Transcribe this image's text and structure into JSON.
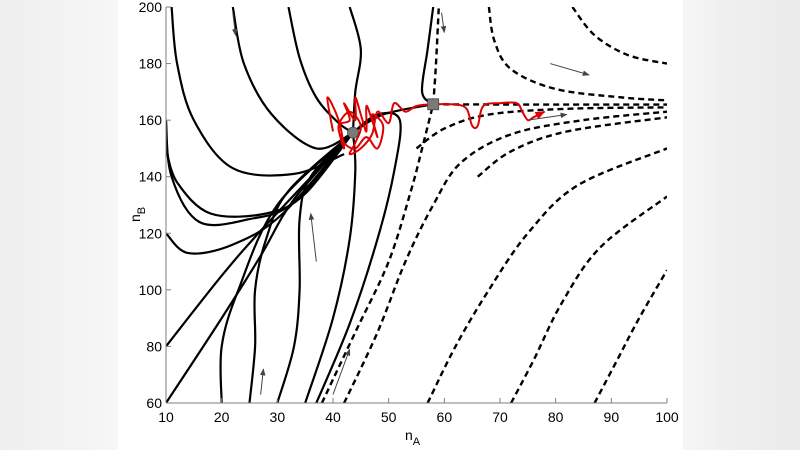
{
  "chart_data": {
    "type": "line",
    "title": "",
    "xlabel": "n_A",
    "ylabel": "n_B",
    "xlabel_main": "n",
    "xlabel_sub": "A",
    "ylabel_main": "n",
    "ylabel_sub": "B",
    "xlim": [
      10,
      100
    ],
    "ylim": [
      60,
      200
    ],
    "grid": false,
    "legend": "none",
    "x_ticks": [
      10,
      20,
      30,
      40,
      50,
      60,
      70,
      80,
      90,
      100
    ],
    "y_ticks": [
      60,
      80,
      100,
      120,
      140,
      160,
      180,
      200
    ],
    "x_tick_labels": [
      "10",
      "20",
      "30",
      "40",
      "50",
      "60",
      "70",
      "80",
      "90",
      "100"
    ],
    "y_tick_labels": [
      "60",
      "80",
      "100",
      "120",
      "140",
      "160",
      "180",
      "200"
    ],
    "colors": {
      "solid": "#000000",
      "dashed": "#000000",
      "trajectory": "#e00000",
      "markers": "#7a7a7a",
      "arrows": "#444444"
    },
    "markers": [
      {
        "shape": "circle",
        "name": "stable-fixed-point",
        "nA": 43.6,
        "nB": 155.6
      },
      {
        "shape": "square",
        "name": "saddle-point",
        "nA": 58.0,
        "nB": 165.6
      }
    ],
    "series": [
      {
        "name": "solid-1",
        "style": "solid",
        "points": [
          [
            11,
            200
          ],
          [
            12,
            180
          ],
          [
            15,
            160
          ],
          [
            22,
            143
          ],
          [
            33,
            141
          ],
          [
            42,
            148
          ]
        ]
      },
      {
        "name": "solid-2",
        "style": "solid",
        "points": [
          [
            22,
            200
          ],
          [
            24,
            180
          ],
          [
            29,
            162
          ],
          [
            37,
            150
          ],
          [
            43.6,
            155.6
          ]
        ]
      },
      {
        "name": "solid-3",
        "style": "solid",
        "points": [
          [
            32,
            200
          ],
          [
            34,
            182
          ],
          [
            37,
            168
          ],
          [
            41,
            159
          ],
          [
            43.6,
            155.6
          ]
        ]
      },
      {
        "name": "solid-4",
        "style": "solid",
        "points": [
          [
            10,
            150
          ],
          [
            12,
            138
          ],
          [
            18,
            127
          ],
          [
            28,
            127
          ],
          [
            35,
            134
          ],
          [
            43.6,
            155.6
          ]
        ]
      },
      {
        "name": "solid-5",
        "style": "solid",
        "points": [
          [
            10,
            160
          ],
          [
            11,
            140
          ],
          [
            16,
            124
          ],
          [
            25,
            125
          ],
          [
            33,
            131
          ],
          [
            43.6,
            155.6
          ]
        ]
      },
      {
        "name": "solid-6",
        "style": "solid",
        "points": [
          [
            10,
            120
          ],
          [
            14,
            113
          ],
          [
            22,
            116
          ],
          [
            31,
            127
          ],
          [
            43.6,
            155.6
          ]
        ]
      },
      {
        "name": "solid-7",
        "style": "solid",
        "points": [
          [
            10,
            80
          ],
          [
            20,
            105
          ],
          [
            28,
            123
          ],
          [
            43.6,
            155.6
          ]
        ]
      },
      {
        "name": "solid-8",
        "style": "solid",
        "points": [
          [
            10,
            60
          ],
          [
            20,
            90
          ],
          [
            27,
            112
          ],
          [
            33,
            132
          ],
          [
            43.6,
            155.6
          ]
        ]
      },
      {
        "name": "solid-9",
        "style": "solid",
        "points": [
          [
            20,
            60
          ],
          [
            20,
            80
          ],
          [
            23,
            100
          ],
          [
            30,
            130
          ],
          [
            43.6,
            155.6
          ]
        ]
      },
      {
        "name": "solid-10",
        "style": "solid",
        "points": [
          [
            25,
            60
          ],
          [
            26,
            80
          ],
          [
            26,
            100
          ],
          [
            28,
            118
          ],
          [
            32,
            135
          ],
          [
            43.6,
            155.6
          ]
        ]
      },
      {
        "name": "solid-11",
        "style": "solid",
        "points": [
          [
            30,
            60
          ],
          [
            33,
            80
          ],
          [
            34,
            100
          ],
          [
            34,
            125
          ],
          [
            36,
            140
          ],
          [
            43.6,
            155.6
          ]
        ]
      },
      {
        "name": "solid-12",
        "style": "solid",
        "points": [
          [
            35,
            60
          ],
          [
            40,
            90
          ],
          [
            43,
            118
          ],
          [
            44,
            142
          ],
          [
            43.6,
            155.6
          ]
        ]
      },
      {
        "name": "solid-13",
        "style": "solid",
        "points": [
          [
            37,
            60
          ],
          [
            43,
            88
          ],
          [
            48,
            118
          ],
          [
            51,
            142
          ],
          [
            52,
            160
          ],
          [
            48,
            162
          ],
          [
            43.6,
            155.6
          ]
        ]
      },
      {
        "name": "solid-separatrix-top",
        "style": "solid",
        "points": [
          [
            43,
            200
          ],
          [
            45,
            185
          ],
          [
            44,
            170
          ],
          [
            43.6,
            155.6
          ]
        ]
      },
      {
        "name": "solid-separatrix-right",
        "style": "solid",
        "points": [
          [
            58,
            200
          ],
          [
            57,
            185
          ],
          [
            56,
            170
          ],
          [
            58,
            165.6
          ]
        ]
      },
      {
        "name": "solid-connector",
        "style": "solid",
        "points": [
          [
            43.6,
            155.6
          ],
          [
            49,
            162
          ],
          [
            58,
            165.6
          ]
        ]
      },
      {
        "name": "dashed-1",
        "style": "dashed",
        "points": [
          [
            38,
            60
          ],
          [
            44,
            85
          ],
          [
            50,
            110
          ],
          [
            54,
            135
          ],
          [
            56,
            150
          ],
          [
            58,
            165.6
          ]
        ]
      },
      {
        "name": "dashed-2",
        "style": "dashed",
        "points": [
          [
            42,
            60
          ],
          [
            48,
            85
          ],
          [
            53,
            110
          ],
          [
            58,
            130
          ],
          [
            63,
            145
          ],
          [
            72,
            155
          ],
          [
            85,
            160
          ],
          [
            100,
            163
          ]
        ]
      },
      {
        "name": "dashed-3",
        "style": "dashed",
        "points": [
          [
            57,
            60
          ],
          [
            62,
            80
          ],
          [
            68,
            100
          ],
          [
            75,
            120
          ],
          [
            84,
            137
          ],
          [
            100,
            150
          ]
        ]
      },
      {
        "name": "dashed-4",
        "style": "dashed",
        "points": [
          [
            72,
            60
          ],
          [
            76,
            75
          ],
          [
            81,
            95
          ],
          [
            88,
            115
          ],
          [
            100,
            133
          ]
        ]
      },
      {
        "name": "dashed-5",
        "style": "dashed",
        "points": [
          [
            87,
            60
          ],
          [
            91,
            75
          ],
          [
            95,
            90
          ],
          [
            100,
            107
          ]
        ]
      },
      {
        "name": "dashed-6",
        "style": "dashed",
        "points": [
          [
            58,
            165.6
          ],
          [
            58.5,
            180
          ],
          [
            59,
            200
          ]
        ]
      },
      {
        "name": "dashed-7",
        "style": "dashed",
        "points": [
          [
            68,
            200
          ],
          [
            69,
            188
          ],
          [
            72,
            178
          ],
          [
            80,
            171
          ],
          [
            92,
            168
          ],
          [
            100,
            167
          ]
        ]
      },
      {
        "name": "dashed-8",
        "style": "dashed",
        "points": [
          [
            83,
            200
          ],
          [
            87,
            190
          ],
          [
            93,
            183
          ],
          [
            100,
            180
          ]
        ]
      },
      {
        "name": "dashed-9",
        "style": "dashed",
        "points": [
          [
            58,
            165.6
          ],
          [
            75,
            165.5
          ],
          [
            100,
            165.5
          ]
        ]
      },
      {
        "name": "dashed-10",
        "style": "dashed",
        "points": [
          [
            55,
            150
          ],
          [
            60,
            157
          ],
          [
            68,
            162
          ],
          [
            82,
            164
          ],
          [
            100,
            164.5
          ]
        ]
      },
      {
        "name": "dashed-11",
        "style": "dashed",
        "points": [
          [
            66,
            140
          ],
          [
            72,
            149
          ],
          [
            82,
            156
          ],
          [
            100,
            161
          ]
        ]
      }
    ],
    "trajectory": {
      "name": "stochastic-trajectory",
      "color": "#e00000",
      "points": [
        [
          40,
          156
        ],
        [
          39,
          168
        ],
        [
          41,
          160
        ],
        [
          42,
          150
        ],
        [
          41,
          158
        ],
        [
          43,
          160
        ],
        [
          42,
          166
        ],
        [
          44,
          160
        ],
        [
          44,
          168
        ],
        [
          45,
          162
        ],
        [
          46,
          156
        ],
        [
          46,
          165
        ],
        [
          47,
          160
        ],
        [
          48,
          154
        ],
        [
          47,
          162
        ],
        [
          49,
          158
        ],
        [
          48,
          150
        ],
        [
          46,
          154
        ],
        [
          44,
          150
        ],
        [
          42,
          152
        ],
        [
          41,
          158
        ],
        [
          43,
          163
        ],
        [
          45,
          158
        ],
        [
          44,
          152
        ],
        [
          43,
          148
        ],
        [
          45,
          150
        ],
        [
          47,
          155
        ],
        [
          48,
          163
        ],
        [
          50,
          159
        ],
        [
          51,
          166
        ],
        [
          53,
          163
        ],
        [
          55,
          165
        ],
        [
          58,
          165.6
        ],
        [
          62,
          165.5
        ],
        [
          64,
          164
        ],
        [
          65,
          158
        ],
        [
          66,
          158
        ],
        [
          67,
          165
        ],
        [
          70,
          166
        ],
        [
          73,
          166
        ],
        [
          74,
          163
        ],
        [
          75,
          160
        ],
        [
          76,
          161
        ],
        [
          78,
          163
        ]
      ]
    },
    "annotations": [
      {
        "type": "arrow",
        "from": [
          22,
          198
        ],
        "to": [
          22.5,
          190
        ]
      },
      {
        "type": "arrow",
        "from": [
          59.5,
          198
        ],
        "to": [
          60,
          191
        ]
      },
      {
        "type": "arrow",
        "from": [
          79,
          180
        ],
        "to": [
          86,
          176
        ]
      },
      {
        "type": "arrow",
        "from": [
          75,
          160
        ],
        "to": [
          82,
          162
        ]
      },
      {
        "type": "arrow",
        "from": [
          37,
          110
        ],
        "to": [
          36,
          127
        ]
      },
      {
        "type": "arrow",
        "from": [
          27,
          63
        ],
        "to": [
          27.5,
          72
        ]
      },
      {
        "type": "arrow",
        "from": [
          40,
          63
        ],
        "to": [
          43,
          79
        ]
      }
    ]
  }
}
